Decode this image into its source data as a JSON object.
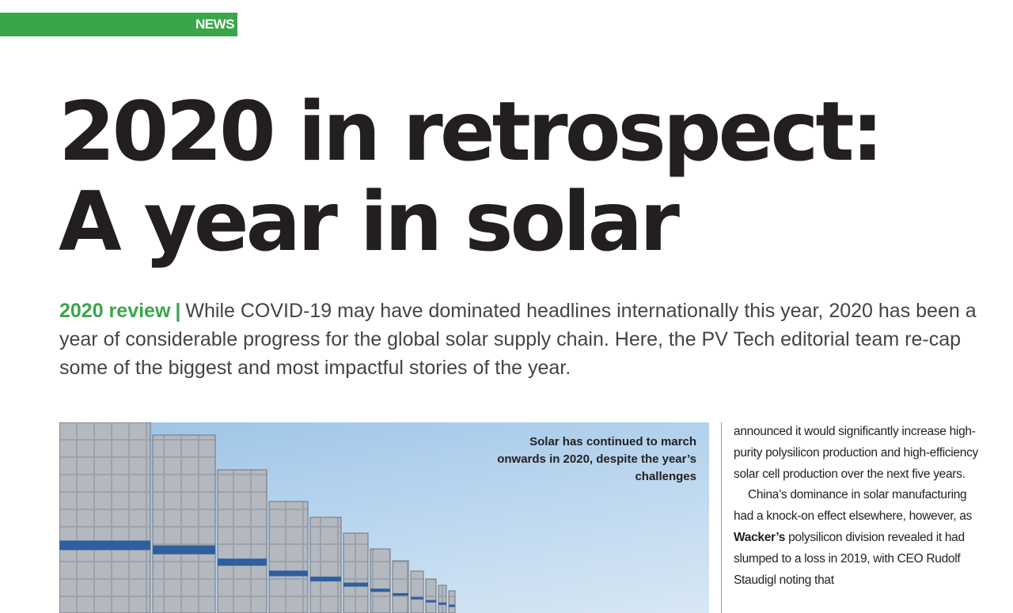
{
  "section": {
    "label": "NEWS",
    "color": "#3aa64a"
  },
  "headline": {
    "line1": "2020 in retrospect:",
    "line2": "A year in solar"
  },
  "standfirst": {
    "kicker": "2020 review",
    "separator": "|",
    "text": "While COVID-19 may have dominated headlines internationally this year, 2020 has been a year of considerable progress for the global solar supply chain. Here, the PV Tech editorial team re-cap some of the biggest and most impactful stories of the year."
  },
  "photo": {
    "caption": "Solar has continued to march onwards in 2020, despite the year’s challenges"
  },
  "body": {
    "para1": "announced it would significantly increase high-purity polysilicon production and high-efficiency solar cell production over the next five years.",
    "para2_before": "China’s dominance in solar manufac­turing had a knock-on effect elsewhere, however, as ",
    "para2_company": "Wacker’s",
    "para2_after": " polysilicon division revealed it had slumped to a loss in 2019, with CEO Rudolf Staudigl noting that"
  }
}
